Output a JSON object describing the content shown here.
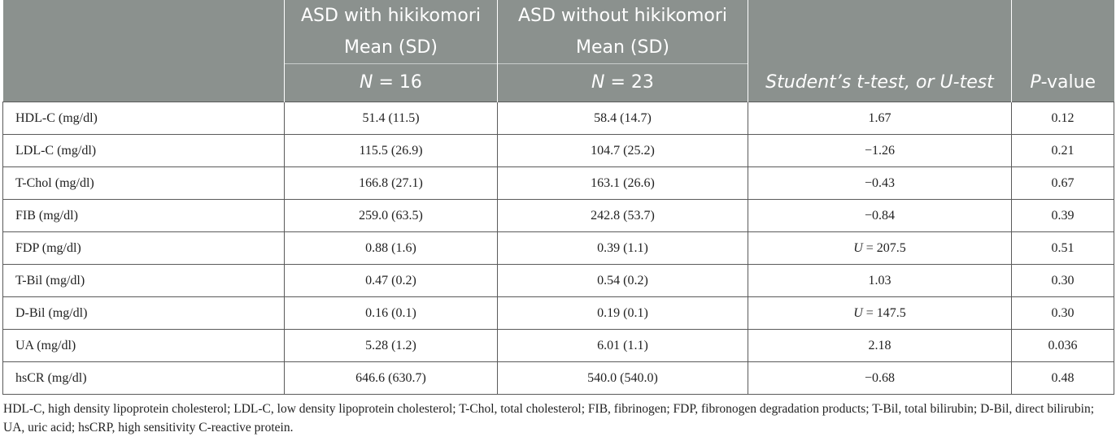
{
  "header": {
    "col2_line1": "ASD with hikikomori",
    "col2_line2": "Mean (SD)",
    "col2_n_label": "N",
    "col2_n_rest": " = 16",
    "col3_line1": "ASD without hikikomori",
    "col3_line2": "Mean (SD)",
    "col3_n_label": "N",
    "col3_n_rest": " = 23",
    "col4": "Student’s t-test, or U-test",
    "col5_p": "P",
    "col5_rest": "-value"
  },
  "rows": [
    {
      "label": "HDL-C (mg/dl)",
      "with": "51.4 (11.5)",
      "without": "58.4 (14.7)",
      "test_prefix": "",
      "test": "1.67",
      "p": "0.12"
    },
    {
      "label": "LDL-C (mg/dl)",
      "with": "115.5 (26.9)",
      "without": "104.7 (25.2)",
      "test_prefix": "",
      "test": "−1.26",
      "p": "0.21"
    },
    {
      "label": "T-Chol (mg/dl)",
      "with": "166.8 (27.1)",
      "without": "163.1 (26.6)",
      "test_prefix": "",
      "test": "−0.43",
      "p": "0.67"
    },
    {
      "label": "FIB (mg/dl)",
      "with": "259.0 (63.5)",
      "without": "242.8 (53.7)",
      "test_prefix": "",
      "test": "−0.84",
      "p": "0.39"
    },
    {
      "label": "FDP (mg/dl)",
      "with": "0.88 (1.6)",
      "without": "0.39 (1.1)",
      "test_prefix": "U",
      "test": " = 207.5",
      "p": "0.51"
    },
    {
      "label": "T-Bil (mg/dl)",
      "with": "0.47 (0.2)",
      "without": "0.54 (0.2)",
      "test_prefix": "",
      "test": "1.03",
      "p": "0.30"
    },
    {
      "label": "D-Bil (mg/dl)",
      "with": "0.16 (0.1)",
      "without": "0.19 (0.1)",
      "test_prefix": "U",
      "test": " = 147.5",
      "p": "0.30"
    },
    {
      "label": "UA (mg/dl)",
      "with": "5.28 (1.2)",
      "without": "6.01 (1.1)",
      "test_prefix": "",
      "test": "2.18",
      "p": "0.036"
    },
    {
      "label": "hsCR (mg/dl)",
      "with": "646.6 (630.7)",
      "without": "540.0 (540.0)",
      "test_prefix": "",
      "test": "−0.68",
      "p": "0.48"
    }
  ],
  "footnote": "HDL-C, high density lipoprotein cholesterol; LDL-C, low density lipoprotein cholesterol; T-Chol, total cholesterol; FIB, fibrinogen; FDP, fibronogen degradation products; T-Bil, total bilirubin; D-Bil, direct bilirubin; UA, uric acid; hsCRP, high sensitivity C-reactive protein."
}
